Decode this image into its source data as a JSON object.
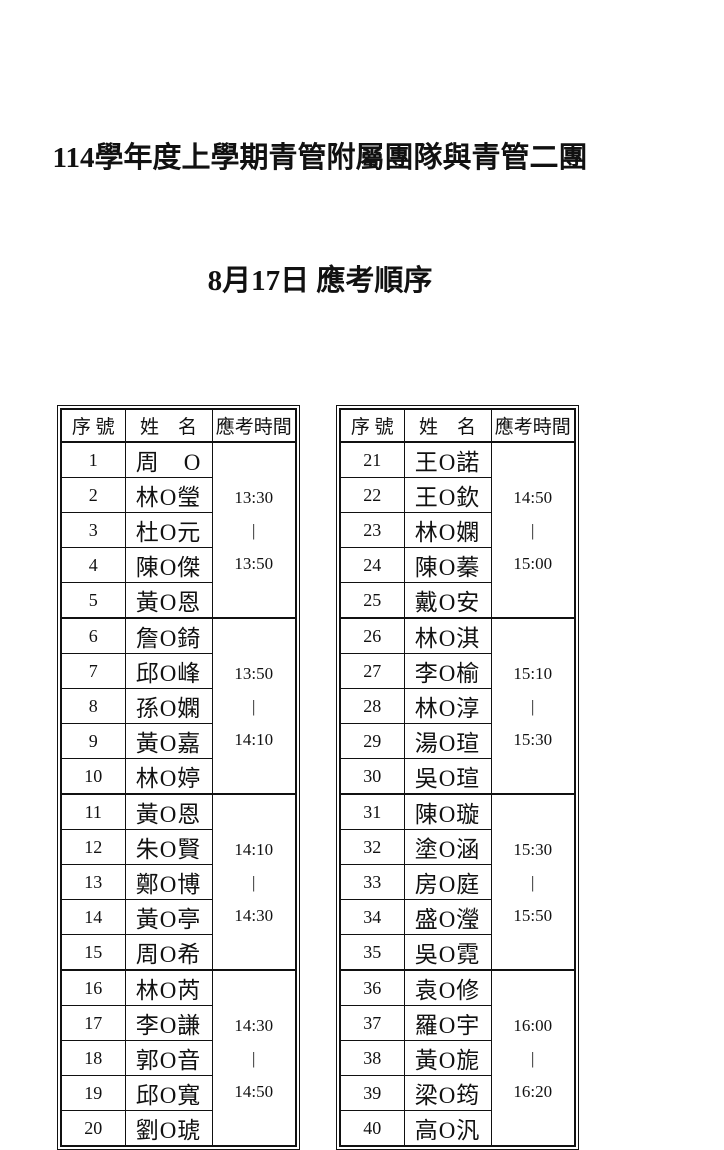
{
  "page": {
    "title_line1": "114學年度上學期青管附屬團隊與青管二團",
    "title_line2": "8月17日 應考順序"
  },
  "colors": {
    "text": "#111111",
    "border": "#111111",
    "background": "#ffffff"
  },
  "tables": [
    {
      "headers": {
        "no": "序 號",
        "name": "姓　名",
        "time": "應考時間"
      },
      "groups": [
        {
          "time": "13:30\n|\n13:50",
          "rows": [
            {
              "no": "1",
              "name": "周　O"
            },
            {
              "no": "2",
              "name": "林O瑩"
            },
            {
              "no": "3",
              "name": "杜O元"
            },
            {
              "no": "4",
              "name": "陳O傑"
            },
            {
              "no": "5",
              "name": "黃O恩"
            }
          ]
        },
        {
          "time": "13:50\n|\n14:10",
          "rows": [
            {
              "no": "6",
              "name": "詹O錡"
            },
            {
              "no": "7",
              "name": "邱O峰"
            },
            {
              "no": "8",
              "name": "孫O嫻"
            },
            {
              "no": "9",
              "name": "黃O嘉"
            },
            {
              "no": "10",
              "name": "林O婷"
            }
          ]
        },
        {
          "time": "14:10\n|\n14:30",
          "rows": [
            {
              "no": "11",
              "name": "黃O恩"
            },
            {
              "no": "12",
              "name": "朱O賢"
            },
            {
              "no": "13",
              "name": "鄭O博"
            },
            {
              "no": "14",
              "name": "黃O亭"
            },
            {
              "no": "15",
              "name": "周O希"
            }
          ]
        },
        {
          "time": "14:30\n|\n14:50",
          "rows": [
            {
              "no": "16",
              "name": "林O芮"
            },
            {
              "no": "17",
              "name": "李O謙"
            },
            {
              "no": "18",
              "name": "郭O音"
            },
            {
              "no": "19",
              "name": "邱O寬"
            },
            {
              "no": "20",
              "name": "劉O琥"
            }
          ]
        }
      ]
    },
    {
      "headers": {
        "no": "序 號",
        "name": "姓　名",
        "time": "應考時間"
      },
      "groups": [
        {
          "time": "14:50\n|\n15:00",
          "rows": [
            {
              "no": "21",
              "name": "王O諾"
            },
            {
              "no": "22",
              "name": "王O欽"
            },
            {
              "no": "23",
              "name": "林O嫻"
            },
            {
              "no": "24",
              "name": "陳O蓁"
            },
            {
              "no": "25",
              "name": "戴O安"
            }
          ]
        },
        {
          "time": "15:10\n|\n15:30",
          "rows": [
            {
              "no": "26",
              "name": "林O淇"
            },
            {
              "no": "27",
              "name": "李O榆"
            },
            {
              "no": "28",
              "name": "林O淳"
            },
            {
              "no": "29",
              "name": "湯O瑄"
            },
            {
              "no": "30",
              "name": "吳O瑄"
            }
          ]
        },
        {
          "time": "15:30\n|\n15:50",
          "rows": [
            {
              "no": "31",
              "name": "陳O璇"
            },
            {
              "no": "32",
              "name": "塗O涵"
            },
            {
              "no": "33",
              "name": "房O庭"
            },
            {
              "no": "34",
              "name": "盛O瀅"
            },
            {
              "no": "35",
              "name": "吳O霓"
            }
          ]
        },
        {
          "time": "16:00\n|\n16:20",
          "rows": [
            {
              "no": "36",
              "name": "袁O修"
            },
            {
              "no": "37",
              "name": "羅O宇"
            },
            {
              "no": "38",
              "name": "黃O旎"
            },
            {
              "no": "39",
              "name": "梁O筠"
            },
            {
              "no": "40",
              "name": "高O汎"
            }
          ]
        }
      ]
    }
  ]
}
